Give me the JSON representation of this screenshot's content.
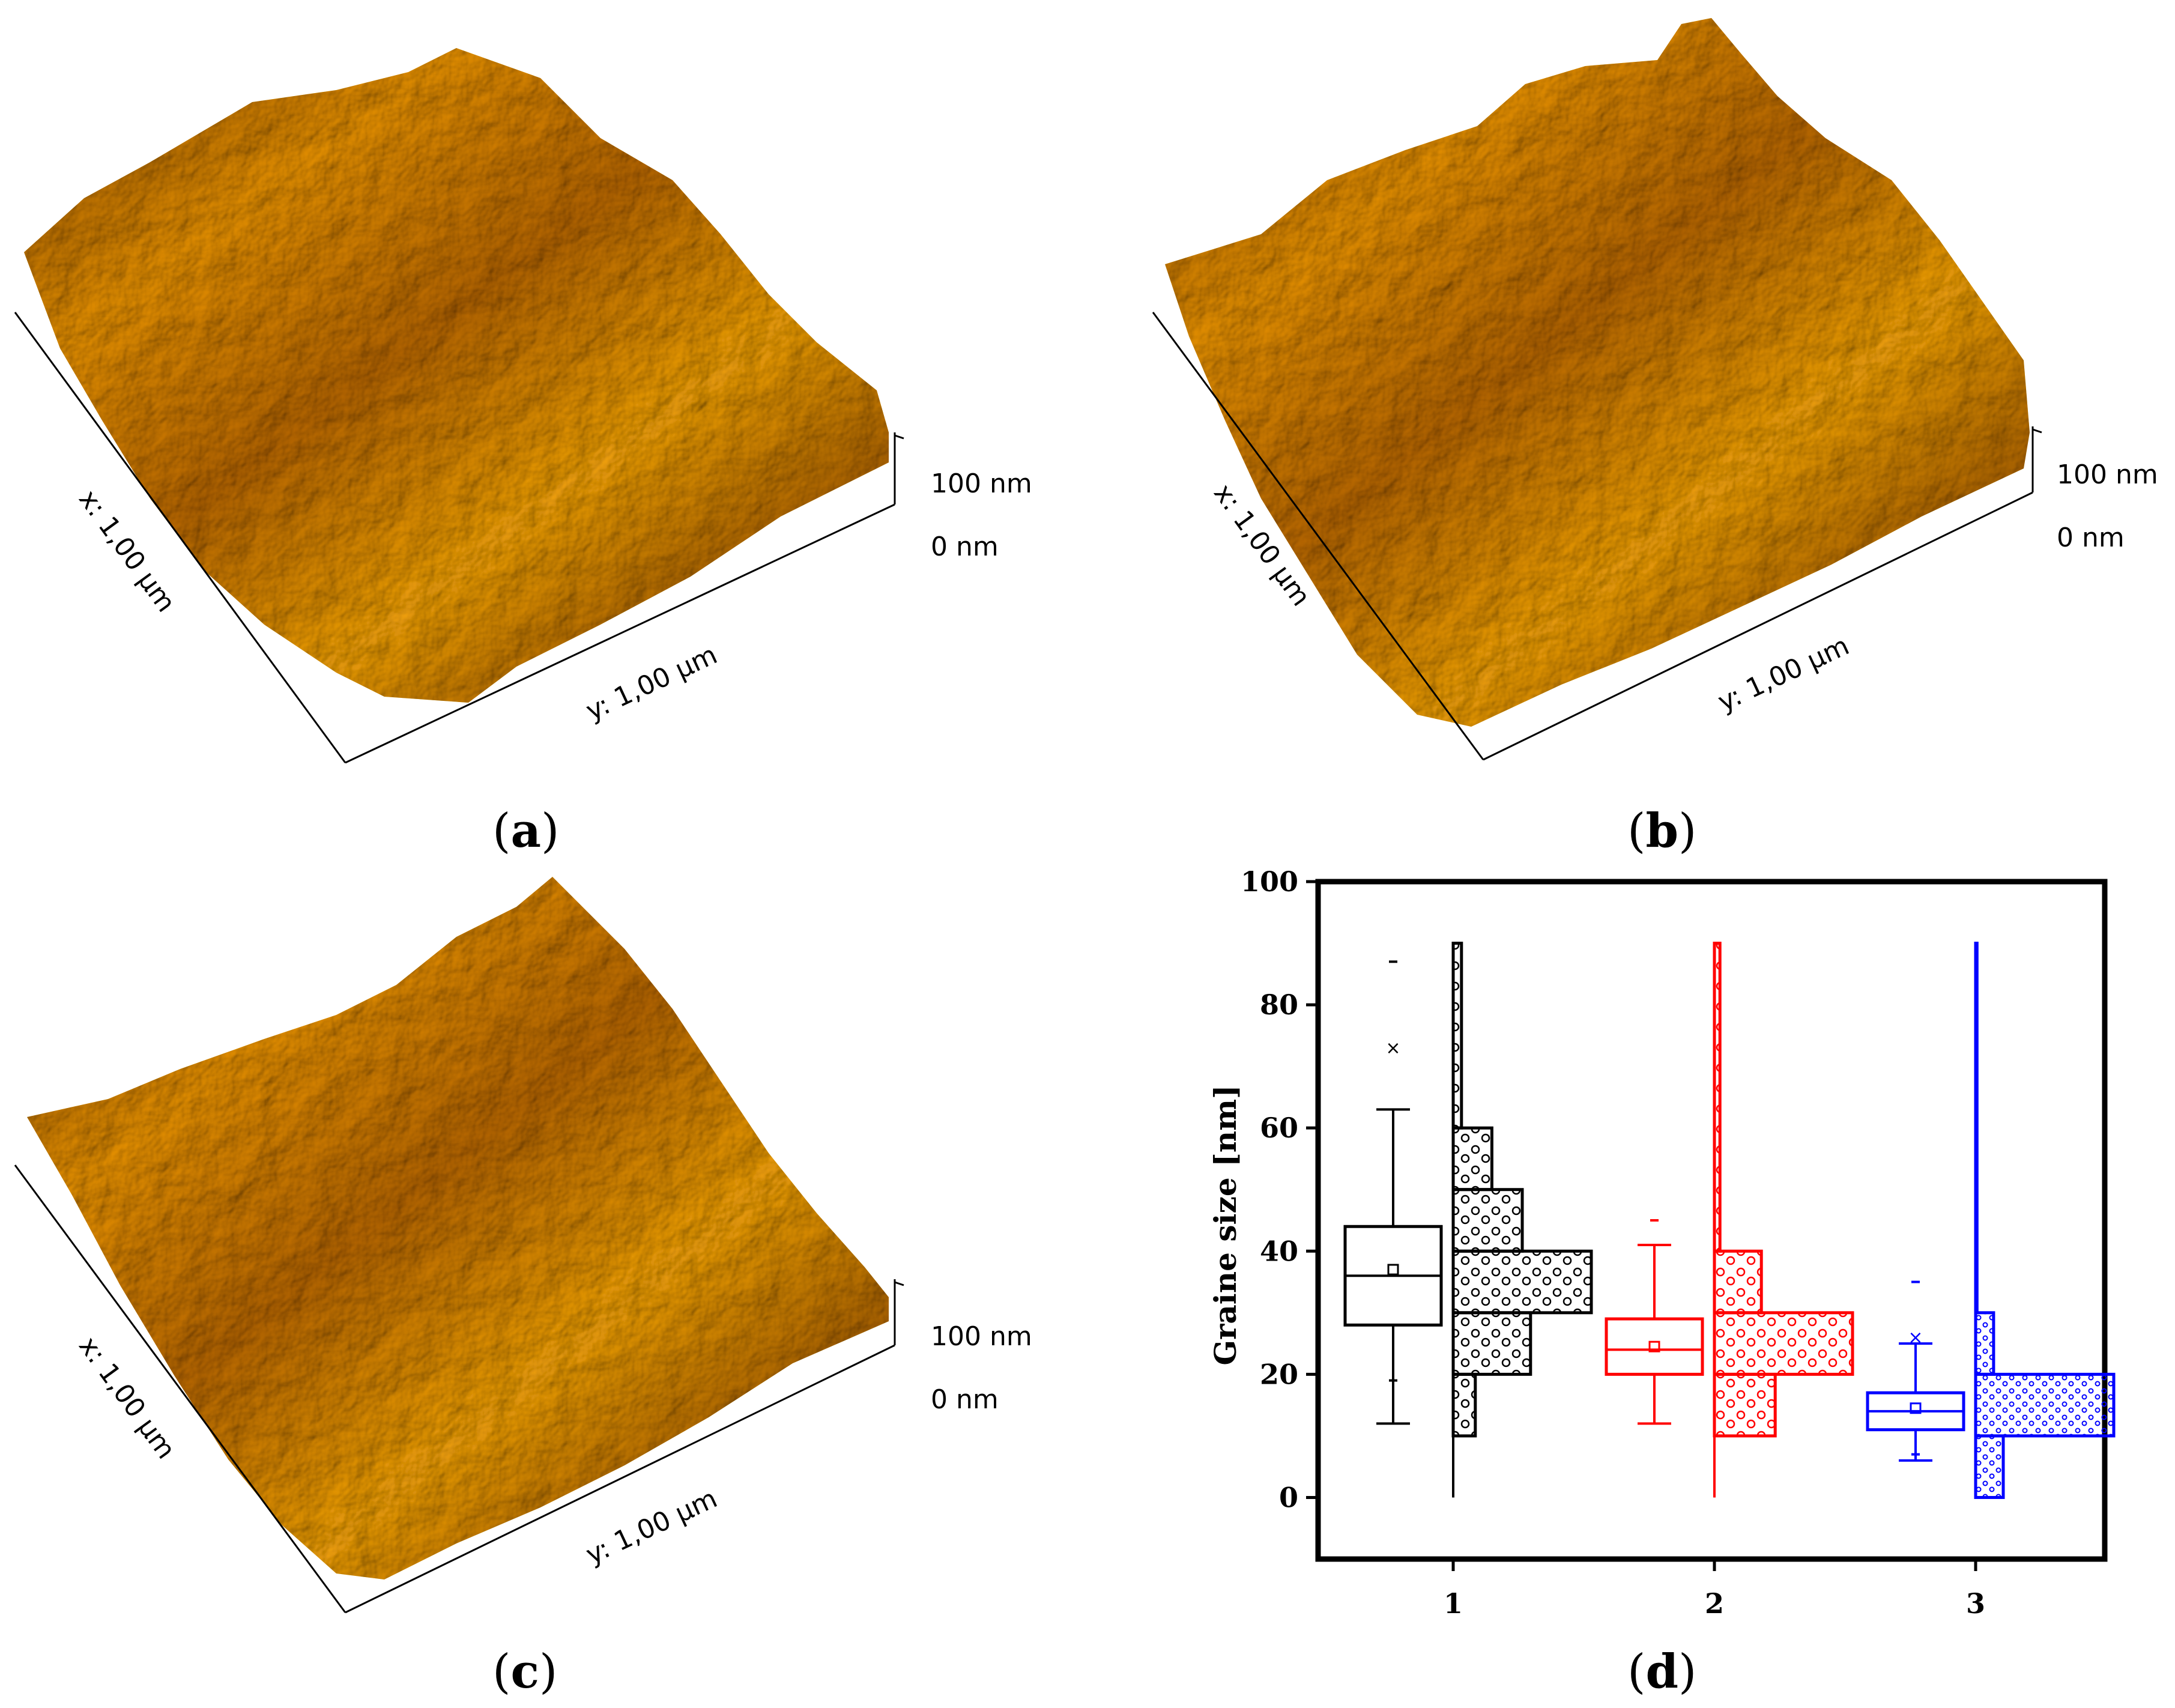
{
  "panels": [
    {
      "id": "a",
      "caption_open": "(",
      "caption_letter": "a",
      "caption_close": ")",
      "x_label": "x: 1,00 µm",
      "y_label": "y: 1,00 µm",
      "z_top": "100 nm",
      "z_bottom": "0 nm"
    },
    {
      "id": "b",
      "caption_open": "(",
      "caption_letter": "b",
      "caption_close": ")",
      "x_label": "x: 1,00 µm",
      "y_label": "y: 1,00 µm",
      "z_top": "100 nm",
      "z_bottom": "0 nm"
    },
    {
      "id": "c",
      "caption_open": "(",
      "caption_letter": "c",
      "caption_close": ")",
      "x_label": "x: 1,00 µm",
      "y_label": "y: 1,00 µm",
      "z_top": "100 nm",
      "z_bottom": "0 nm"
    }
  ],
  "chart_caption": {
    "open": "(",
    "letter": "d",
    "close": ")"
  },
  "colors": {
    "series_1": "#000000",
    "series_2": "#ff0000",
    "series_3": "#0000ff",
    "afm_gold": "#c8920a"
  },
  "chart_data": {
    "type": "box",
    "ylabel": "Graine size [nm]",
    "xlabel": "",
    "ylim": [
      -10,
      100
    ],
    "yticks": [
      0,
      20,
      40,
      60,
      80,
      100
    ],
    "categories": [
      "1",
      "2",
      "3"
    ],
    "series": [
      {
        "category": "1",
        "whisker_low": 12,
        "q1": 28,
        "median": 36,
        "q3": 44,
        "whisker_high": 63,
        "mean": 37,
        "outliers": [
          73
        ],
        "extremes": [
          87,
          19
        ],
        "histogram": [
          {
            "from": 10,
            "to": 20,
            "rel": 0.16
          },
          {
            "from": 20,
            "to": 30,
            "rel": 0.56
          },
          {
            "from": 30,
            "to": 40,
            "rel": 1.0
          },
          {
            "from": 40,
            "to": 50,
            "rel": 0.5
          },
          {
            "from": 50,
            "to": 60,
            "rel": 0.28
          },
          {
            "from": 60,
            "to": 90,
            "rel": 0.06
          }
        ]
      },
      {
        "category": "2",
        "whisker_low": 12,
        "q1": 20,
        "median": 24,
        "q3": 29,
        "whisker_high": 41,
        "mean": 24.5,
        "outliers": [],
        "extremes": [
          45
        ],
        "histogram": [
          {
            "from": 10,
            "to": 20,
            "rel": 0.44
          },
          {
            "from": 20,
            "to": 30,
            "rel": 1.0
          },
          {
            "from": 30,
            "to": 40,
            "rel": 0.34
          },
          {
            "from": 40,
            "to": 90,
            "rel": 0.04
          }
        ]
      },
      {
        "category": "3",
        "whisker_low": 6,
        "q1": 11,
        "median": 14,
        "q3": 17,
        "whisker_high": 25,
        "mean": 14.5,
        "outliers": [
          26
        ],
        "extremes": [
          35,
          7
        ],
        "histogram": [
          {
            "from": 0,
            "to": 10,
            "rel": 0.2
          },
          {
            "from": 10,
            "to": 20,
            "rel": 1.0
          },
          {
            "from": 20,
            "to": 30,
            "rel": 0.13
          },
          {
            "from": 30,
            "to": 90,
            "rel": 0.01
          }
        ]
      }
    ]
  }
}
